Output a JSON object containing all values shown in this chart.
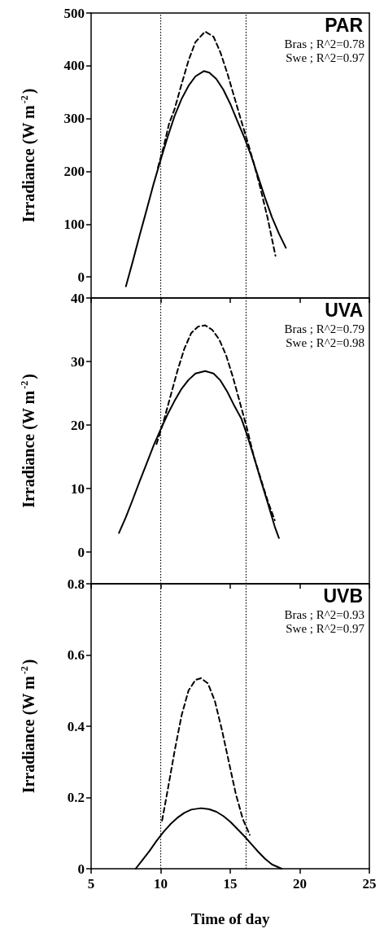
{
  "chart_data": [
    {
      "type": "line",
      "title": "PAR",
      "ylabel": "Irradiance (W m$^{-2}$)",
      "annotations": [
        "Bras ; R^2=0.78",
        "Swe ; R^2=0.97"
      ],
      "xlim": [
        5,
        25
      ],
      "xticks": [
        5,
        10,
        15,
        20,
        25
      ],
      "ylim": [
        -40,
        500
      ],
      "yticks": [
        0,
        100,
        200,
        300,
        400,
        500
      ],
      "tick_labels": "y",
      "grid": false,
      "marker": "none",
      "ref_lines": [
        {
          "axis": "x",
          "value": 10,
          "line_style": "dotted"
        },
        {
          "axis": "x",
          "value": 16.1,
          "line_style": "dotted"
        }
      ],
      "series": [
        {
          "color": "#000000",
          "line_style": "solid",
          "x": [
            7.5,
            8,
            8.5,
            9,
            9.5,
            10,
            10.5,
            11,
            11.5,
            12,
            12.5,
            13.1,
            13.5,
            14,
            14.5,
            15,
            15.5,
            16,
            16.5,
            17,
            17.5,
            18,
            18.5,
            19
          ],
          "values": [
            -18,
            30,
            80,
            128,
            177,
            222,
            265,
            305,
            337,
            362,
            380,
            390,
            387,
            375,
            355,
            328,
            296,
            265,
            230,
            190,
            150,
            113,
            82,
            55
          ]
        },
        {
          "color": "#000000",
          "line_style": "dashed",
          "x": [
            9.8,
            10.2,
            10.6,
            11,
            11.5,
            12,
            12.5,
            13.2,
            13.8,
            14.3,
            14.8,
            15.3,
            15.8,
            16.2,
            16.7,
            17.2,
            17.7,
            18.25
          ],
          "values": [
            207,
            245,
            290,
            318,
            365,
            410,
            445,
            465,
            455,
            425,
            385,
            340,
            295,
            260,
            215,
            165,
            110,
            40
          ]
        }
      ]
    },
    {
      "type": "line",
      "title": "UVA",
      "ylabel": "Irradiance (W m$^{-2}$)",
      "annotations": [
        "Bras ; R^2=0.79",
        "Swe ; R^2=0.98"
      ],
      "xlim": [
        5,
        25
      ],
      "xticks": [
        5,
        10,
        15,
        20,
        25
      ],
      "ylim": [
        -5,
        40
      ],
      "yticks": [
        0,
        10,
        20,
        30,
        40
      ],
      "tick_labels": "y",
      "grid": false,
      "marker": "none",
      "ref_lines": [
        {
          "axis": "x",
          "value": 10,
          "line_style": "dotted"
        },
        {
          "axis": "x",
          "value": 16.1,
          "line_style": "dotted"
        }
      ],
      "series": [
        {
          "color": "#000000",
          "line_style": "solid",
          "x": [
            7,
            7.5,
            8,
            8.5,
            9,
            9.5,
            10,
            10.5,
            11,
            11.5,
            12,
            12.5,
            13.2,
            13.8,
            14.3,
            14.8,
            15.3,
            15.8,
            16.2,
            16.7,
            17.2,
            17.7,
            18.2,
            18.5
          ],
          "values": [
            3,
            5.5,
            8.3,
            11.2,
            14,
            16.8,
            19.3,
            21.7,
            23.8,
            25.7,
            27.1,
            28.1,
            28.5,
            28.1,
            27,
            25.2,
            23,
            21,
            18.5,
            15,
            11.3,
            7.7,
            4,
            2.2
          ]
        },
        {
          "color": "#000000",
          "line_style": "dashed",
          "x": [
            9.7,
            10.2,
            10.7,
            11.2,
            11.7,
            12.2,
            12.7,
            13.2,
            13.7,
            14.2,
            14.7,
            15.2,
            15.7,
            16.2,
            16.7,
            17.2,
            17.7,
            18.2
          ],
          "values": [
            17,
            20.5,
            24.5,
            28.5,
            32,
            34.5,
            35.5,
            35.7,
            35,
            33.5,
            31,
            27.5,
            23.5,
            19.5,
            15,
            11.5,
            8,
            5
          ]
        }
      ]
    },
    {
      "type": "line",
      "title": "UVB",
      "ylabel": "Irradiance (W m$^{-2}$)",
      "xlabel": "Time of day",
      "annotations": [
        "Bras ; R^2=0.93",
        "Swe ; R^2=0.97"
      ],
      "xlim": [
        5,
        25
      ],
      "xticks": [
        5,
        10,
        15,
        20,
        25
      ],
      "ylim": [
        0,
        0.8
      ],
      "yticks": [
        0,
        0.2,
        0.4,
        0.6,
        0.8
      ],
      "grid": false,
      "marker": "none",
      "ref_lines": [
        {
          "axis": "x",
          "value": 10,
          "line_style": "dotted"
        },
        {
          "axis": "x",
          "value": 16.1,
          "line_style": "dotted"
        }
      ],
      "series": [
        {
          "color": "#000000",
          "line_style": "solid",
          "x": [
            8.2,
            8.7,
            9.2,
            9.7,
            10.2,
            10.7,
            11.2,
            11.7,
            12.2,
            12.9,
            13.5,
            14,
            14.5,
            15,
            15.5,
            16,
            16.5,
            17,
            17.5,
            18,
            18.7
          ],
          "values": [
            0,
            0.025,
            0.05,
            0.078,
            0.103,
            0.125,
            0.143,
            0.157,
            0.166,
            0.17,
            0.167,
            0.16,
            0.148,
            0.132,
            0.112,
            0.092,
            0.07,
            0.048,
            0.028,
            0.012,
            0
          ]
        },
        {
          "color": "#000000",
          "line_style": "dashed",
          "x": [
            10.1,
            10.5,
            11,
            11.5,
            12,
            12.5,
            12.9,
            13.4,
            13.9,
            14.4,
            14.9,
            15.4,
            15.9,
            16.4
          ],
          "values": [
            0.135,
            0.22,
            0.33,
            0.43,
            0.5,
            0.53,
            0.535,
            0.52,
            0.47,
            0.39,
            0.3,
            0.21,
            0.14,
            0.095
          ]
        }
      ]
    }
  ]
}
